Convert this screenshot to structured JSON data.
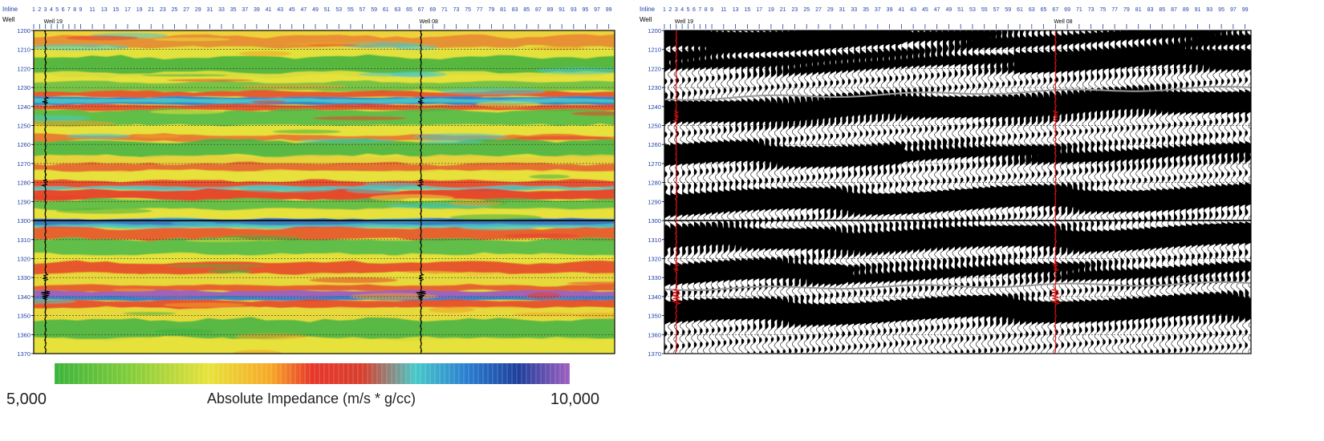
{
  "header": {
    "row1_label": "Inline",
    "row2_label": "Well"
  },
  "inline_ticks": [
    1,
    2,
    3,
    4,
    5,
    6,
    7,
    8,
    9,
    11,
    13,
    15,
    17,
    19,
    21,
    23,
    25,
    27,
    29,
    31,
    33,
    35,
    37,
    39,
    41,
    43,
    45,
    47,
    49,
    51,
    53,
    55,
    57,
    59,
    61,
    63,
    65,
    67,
    69,
    71,
    73,
    75,
    77,
    79,
    81,
    83,
    85,
    87,
    89,
    91,
    93,
    95,
    97,
    99
  ],
  "time_ticks": [
    1200,
    1210,
    1220,
    1230,
    1240,
    1250,
    1260,
    1270,
    1280,
    1290,
    1300,
    1310,
    1320,
    1330,
    1340,
    1350,
    1360,
    1370
  ],
  "wells": [
    {
      "name": "Well 19",
      "inline": 3
    },
    {
      "name": "Well 08",
      "inline": 67
    }
  ],
  "colorbar": {
    "min_label": "5,000",
    "max_label": "10,000",
    "title": "Absolute Impedance (m/s * g/cc)",
    "stops": [
      "#3cb43c",
      "#7fcc3a",
      "#e8e23a",
      "#f7a826",
      "#e8362a",
      "#d7402e",
      "#48c9c9",
      "#2a7fd0",
      "#1e3f9c",
      "#a060c0"
    ]
  },
  "colors": {
    "axis_text": "#1f3fa8",
    "well_log_left": "#000000",
    "well_log_right": "#e01010",
    "horizon": "#9a9a9a"
  }
}
